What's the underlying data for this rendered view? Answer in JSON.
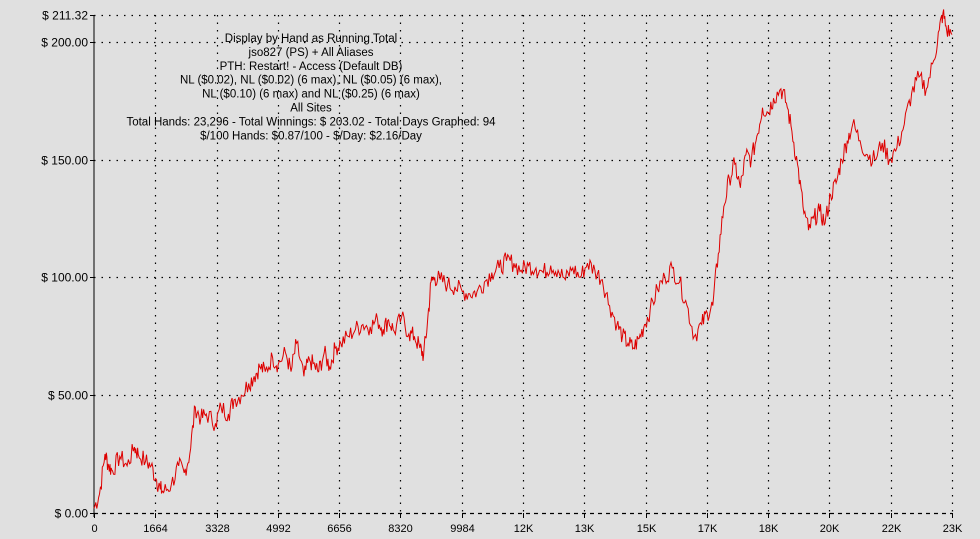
{
  "chart_data": {
    "type": "line",
    "info_lines": [
      "Display by Hand as Running Total",
      "jso827 (PS) + All Aliases",
      "PTH: Restart! - Access (Default DB)",
      "NL ($0.02), NL ($0.02) (6 max), NL ($0.05) (6 max),",
      "NL ($0.10) (6 max) and NL ($0.25) (6 max)",
      "All Sites",
      "Total Hands: 23,296 - Total Winnings: $ 203.02 - Total Days Graphed: 94",
      "$/100 Hands: $0.87/100 - $/Day: $2.16/Day"
    ],
    "y_ticks": [
      {
        "value": 0,
        "label": "$ 0.00"
      },
      {
        "value": 50,
        "label": "$ 50.00"
      },
      {
        "value": 100,
        "label": "$ 100.00"
      },
      {
        "value": 150,
        "label": "$ 150.00"
      },
      {
        "value": 200,
        "label": "$ 200.00"
      },
      {
        "value": 211.32,
        "label": "$ 211.32"
      }
    ],
    "x_ticks": [
      {
        "value": 0,
        "label": "0"
      },
      {
        "value": 1664,
        "label": "1664"
      },
      {
        "value": 3328,
        "label": "3328"
      },
      {
        "value": 4992,
        "label": "4992"
      },
      {
        "value": 6656,
        "label": "6656"
      },
      {
        "value": 8320,
        "label": "8320"
      },
      {
        "value": 9984,
        "label": "9984"
      },
      {
        "value": 11648,
        "label": "12K"
      },
      {
        "value": 13312,
        "label": "13K"
      },
      {
        "value": 14976,
        "label": "15K"
      },
      {
        "value": 16640,
        "label": "17K"
      },
      {
        "value": 18304,
        "label": "18K"
      },
      {
        "value": 19968,
        "label": "20K"
      },
      {
        "value": 21632,
        "label": "22K"
      },
      {
        "value": 23296,
        "label": "23K"
      }
    ],
    "xlim": [
      0,
      23296
    ],
    "ylim": [
      0,
      211.32
    ],
    "grid": true,
    "line_color": "#dd0000",
    "series": [
      {
        "x": [
          0,
          150,
          300,
          400,
          500,
          700,
          900,
          1100,
          1200,
          1400,
          1550,
          1700,
          1800,
          1900,
          2100,
          2300,
          2450,
          2600,
          2750,
          2900,
          3050,
          3300,
          3450,
          3650,
          3800,
          4000,
          4200,
          4350,
          4500,
          4650,
          4850,
          5000,
          5200,
          5350,
          5500,
          5700,
          5850,
          6000,
          6100,
          6250,
          6400,
          6550,
          6700,
          6900,
          7100,
          7300,
          7500,
          7700,
          7850,
          8000,
          8150,
          8350,
          8550,
          8700,
          8850,
          8950,
          9050,
          9150,
          9250,
          9400,
          9600,
          9800,
          10000,
          10200,
          10400,
          10600,
          10800,
          11000,
          11200,
          11400,
          11600,
          11800,
          12000,
          12200,
          12400,
          12600,
          12800,
          13000,
          13200,
          13400,
          13600,
          13800,
          14000,
          14200,
          14350,
          14500,
          14650,
          14800,
          14950,
          15100,
          15300,
          15500,
          15700,
          15900,
          16100,
          16300,
          16500,
          16650,
          16800,
          16950,
          17100,
          17250,
          17400,
          17550,
          17700,
          17850,
          18000,
          18150,
          18300,
          18450,
          18650,
          18800,
          18950,
          19100,
          19250,
          19400,
          19550,
          19700,
          19850,
          20000,
          20150,
          20300,
          20450,
          20600,
          20800,
          21000,
          21200,
          21400,
          21600,
          21800,
          22000,
          22200,
          22400,
          22600,
          22800,
          22950,
          23050,
          23150,
          23296
        ],
        "y": [
          2,
          8,
          25,
          20,
          18,
          24,
          20,
          28,
          25,
          22,
          20,
          14,
          10,
          9,
          12,
          20,
          17,
          25,
          45,
          40,
          42,
          38,
          45,
          42,
          48,
          50,
          55,
          58,
          62,
          60,
          66,
          63,
          68,
          60,
          72,
          58,
          65,
          62,
          60,
          68,
          62,
          70,
          72,
          75,
          78,
          80,
          79,
          82,
          78,
          82,
          77,
          83,
          76,
          75,
          70,
          67,
          80,
          98,
          100,
          99,
          97,
          96,
          94,
          93,
          94,
          98,
          102,
          104,
          107,
          106,
          103,
          105,
          104,
          102,
          105,
          103,
          99,
          104,
          100,
          106,
          103,
          99,
          88,
          80,
          75,
          72,
          70,
          74,
          80,
          86,
          95,
          100,
          104,
          98,
          88,
          75,
          80,
          85,
          88,
          110,
          130,
          142,
          148,
          138,
          152,
          150,
          160,
          172,
          170,
          176,
          180,
          174,
          162,
          148,
          130,
          120,
          125,
          128,
          123,
          135,
          140,
          150,
          158,
          165,
          158,
          152,
          150,
          157,
          150,
          155,
          165,
          178,
          185,
          180,
          192,
          205,
          212,
          205,
          203
        ]
      }
    ]
  }
}
